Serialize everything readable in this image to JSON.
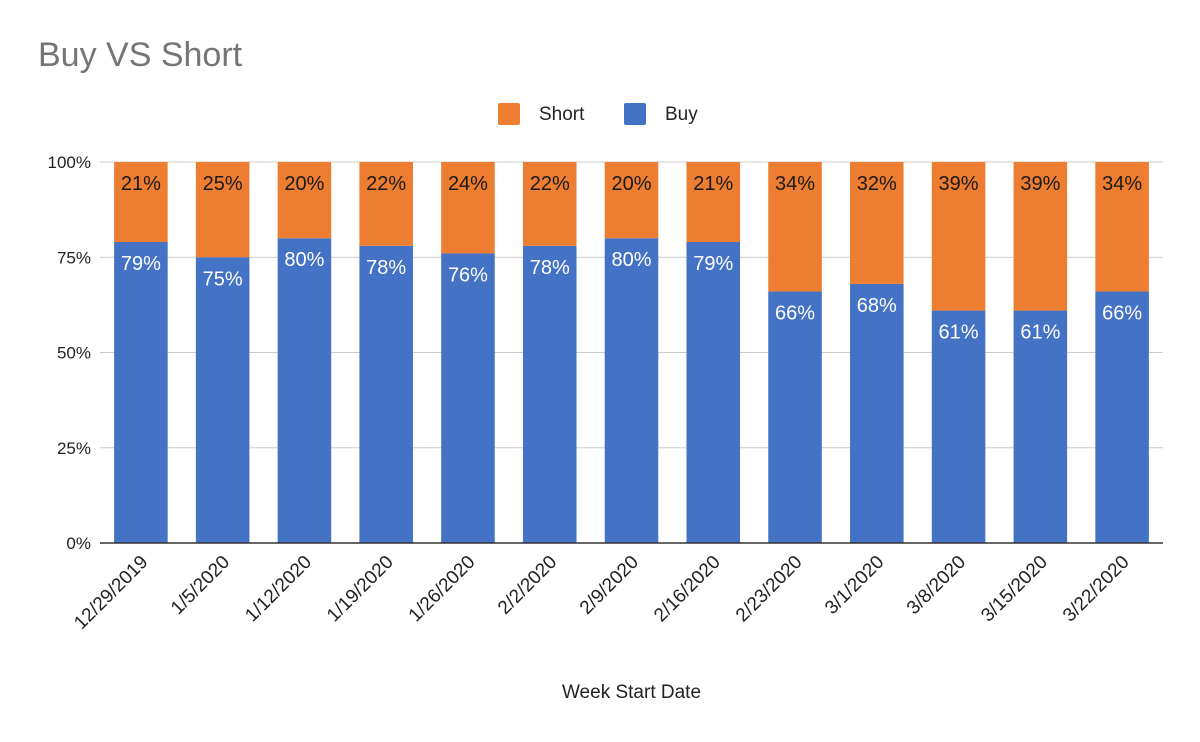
{
  "chart_data": {
    "type": "bar",
    "stacked": true,
    "title": "Buy VS Short",
    "xlabel": "Week Start Date",
    "ylabel": "",
    "ylim": [
      0,
      100
    ],
    "yticks": [
      "0%",
      "25%",
      "50%",
      "75%",
      "100%"
    ],
    "grid": true,
    "legend_position": "top",
    "categories": [
      "12/29/2019",
      "1/5/2020",
      "1/12/2020",
      "1/19/2020",
      "1/26/2020",
      "2/2/2020",
      "2/9/2020",
      "2/16/2020",
      "2/23/2020",
      "3/1/2020",
      "3/8/2020",
      "3/15/2020",
      "3/22/2020"
    ],
    "series": [
      {
        "name": "Buy",
        "color": "#4472c4",
        "values": [
          79,
          75,
          80,
          78,
          76,
          78,
          80,
          79,
          66,
          68,
          61,
          61,
          66
        ],
        "labels": [
          "79%",
          "75%",
          "80%",
          "78%",
          "76%",
          "78%",
          "80%",
          "79%",
          "66%",
          "68%",
          "61%",
          "61%",
          "66%"
        ]
      },
      {
        "name": "Short",
        "color": "#ed7d31",
        "values": [
          21,
          25,
          20,
          22,
          24,
          22,
          20,
          21,
          34,
          32,
          39,
          39,
          34
        ],
        "labels": [
          "21%",
          "25%",
          "20%",
          "22%",
          "24%",
          "22%",
          "20%",
          "21%",
          "34%",
          "32%",
          "39%",
          "39%",
          "34%"
        ]
      }
    ],
    "legend_order": [
      "Short",
      "Buy"
    ]
  }
}
